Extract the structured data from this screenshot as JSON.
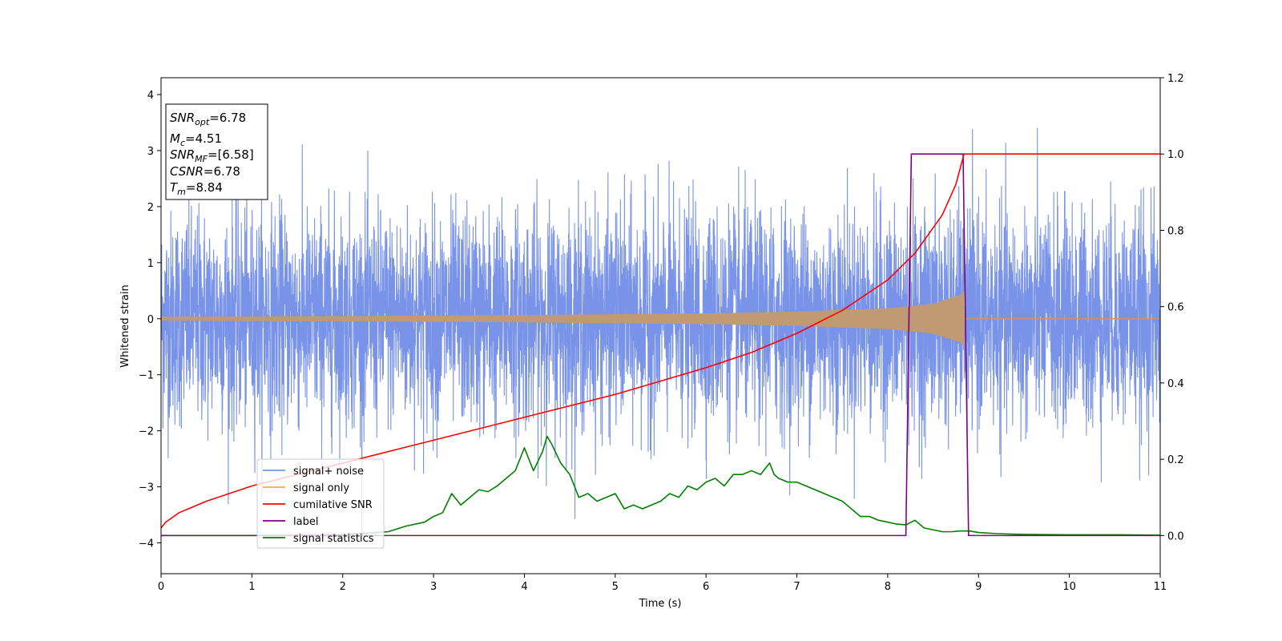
{
  "chart_data": {
    "type": "line",
    "xlabel": "Time (s)",
    "ylabel": "Whitened strain",
    "xlim": [
      0,
      11
    ],
    "ylim_left": [
      -4.55,
      4.3
    ],
    "ylim_right": [
      -0.1,
      1.2
    ],
    "x_ticks": [
      "0",
      "1",
      "2",
      "3",
      "4",
      "5",
      "6",
      "7",
      "8",
      "9",
      "10",
      "11"
    ],
    "y_left_ticks": [
      "4",
      "3",
      "2",
      "1",
      "0",
      "−1",
      "−2",
      "−3",
      "−4"
    ],
    "y_right_ticks": [
      "1.2",
      "1.0",
      "0.8",
      "0.6",
      "0.4",
      "0.2",
      "0.0"
    ],
    "grid": false,
    "legend_position": "lower-left",
    "info_box": {
      "snr_opt": "=6.78",
      "mc": "=4.51",
      "snr_mf": "=[6.58]",
      "csnr": "=6.78",
      "tm": "=8.84"
    },
    "series": [
      {
        "name": "signal+ noise",
        "axis": "left",
        "color": "#7893e8",
        "description_note": "whitened noisy strain, approx. gaussian with std ~0.95",
        "noise_std": 0.95
      },
      {
        "name": "signal only",
        "axis": "left",
        "color": "#f0ad4e",
        "envelope": {
          "x": [
            0,
            2,
            4,
            6,
            7,
            8,
            8.5,
            8.8,
            8.84,
            8.85,
            11
          ],
          "y": [
            0.03,
            0.04,
            0.06,
            0.09,
            0.12,
            0.18,
            0.26,
            0.42,
            0.48,
            0.0,
            0.0
          ]
        }
      },
      {
        "name": "cumilative SNR",
        "axis": "right",
        "color": "#ff0000",
        "x": [
          0,
          0.05,
          0.2,
          0.5,
          1,
          2,
          3,
          4,
          5,
          6,
          6.5,
          7,
          7.5,
          8,
          8.3,
          8.6,
          8.75,
          8.84,
          11
        ],
        "y": [
          0.02,
          0.035,
          0.06,
          0.09,
          0.13,
          0.19,
          0.25,
          0.31,
          0.37,
          0.44,
          0.48,
          0.53,
          0.59,
          0.67,
          0.74,
          0.84,
          0.92,
          1.0,
          1.0
        ]
      },
      {
        "name": "label",
        "axis": "right",
        "color": "#800080",
        "x": [
          0,
          8.2,
          8.26,
          8.83,
          8.89,
          11
        ],
        "y": [
          0,
          0,
          1,
          1,
          0,
          0
        ]
      },
      {
        "name": "signal statistics",
        "axis": "right",
        "color": "#008000",
        "x": [
          0,
          1,
          2,
          2.5,
          2.7,
          2.9,
          3.0,
          3.1,
          3.2,
          3.3,
          3.4,
          3.5,
          3.6,
          3.7,
          3.8,
          3.9,
          4.0,
          4.1,
          4.2,
          4.25,
          4.3,
          4.4,
          4.5,
          4.6,
          4.7,
          4.8,
          4.9,
          5.0,
          5.1,
          5.2,
          5.3,
          5.4,
          5.5,
          5.6,
          5.7,
          5.8,
          5.9,
          6.0,
          6.1,
          6.2,
          6.3,
          6.4,
          6.5,
          6.6,
          6.7,
          6.75,
          6.8,
          6.9,
          7.0,
          7.1,
          7.2,
          7.3,
          7.4,
          7.5,
          7.6,
          7.7,
          7.8,
          7.9,
          8.0,
          8.1,
          8.2,
          8.3,
          8.4,
          8.5,
          8.6,
          8.7,
          8.8,
          8.9,
          9.0,
          9.2,
          9.5,
          10,
          10.5,
          11
        ],
        "y": [
          0.0,
          0.0,
          0.002,
          0.01,
          0.025,
          0.035,
          0.05,
          0.06,
          0.11,
          0.08,
          0.1,
          0.12,
          0.115,
          0.13,
          0.15,
          0.17,
          0.23,
          0.17,
          0.22,
          0.26,
          0.24,
          0.19,
          0.16,
          0.1,
          0.11,
          0.09,
          0.1,
          0.11,
          0.07,
          0.08,
          0.07,
          0.08,
          0.09,
          0.11,
          0.1,
          0.13,
          0.12,
          0.14,
          0.15,
          0.13,
          0.16,
          0.16,
          0.17,
          0.16,
          0.19,
          0.16,
          0.15,
          0.14,
          0.14,
          0.13,
          0.12,
          0.11,
          0.1,
          0.09,
          0.07,
          0.05,
          0.05,
          0.04,
          0.035,
          0.03,
          0.028,
          0.04,
          0.02,
          0.015,
          0.01,
          0.01,
          0.012,
          0.012,
          0.008,
          0.005,
          0.003,
          0.002,
          0.002,
          0.001
        ]
      }
    ]
  }
}
